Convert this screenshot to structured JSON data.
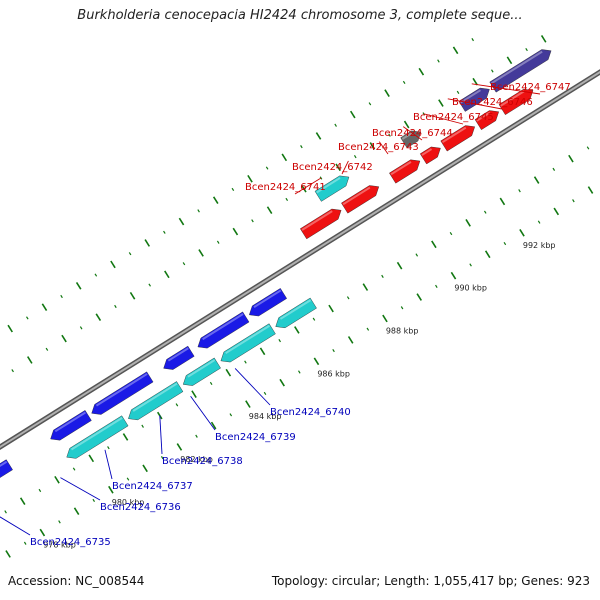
{
  "title": "Burkholderia cenocepacia HI2424 chromosome 3, complete seque...",
  "footer": {
    "accession": "Accession: NC_008544",
    "topology": "Topology: circular; Length: 1,055,417 bp; Genes: 923"
  },
  "colors": {
    "forward_gene": "#ee1111",
    "forward_operon": "#443a9a",
    "forward_other": "#666666",
    "reverse_gene": "#1a1ae6",
    "reverse_gene2": "#22cccc",
    "backbone": "#8a8a8a",
    "ticks": "#117711",
    "label_forward": "#cc0000",
    "label_reverse": "#0000bb"
  },
  "scale": {
    "unit": "kbp",
    "labeled_ticks": [
      {
        "kbp": 978,
        "label": "978 kbp"
      },
      {
        "kbp": 980,
        "label": "980 kbp"
      },
      {
        "kbp": 982,
        "label": "982 kbp"
      },
      {
        "kbp": 984,
        "label": "984 kbp"
      },
      {
        "kbp": 986,
        "label": "986 kbp"
      },
      {
        "kbp": 988,
        "label": "988 kbp"
      },
      {
        "kbp": 990,
        "label": "990 kbp"
      },
      {
        "kbp": 992,
        "label": "992 kbp"
      }
    ]
  },
  "forward_genes": [
    {
      "name": "Bcen2424_6741",
      "track": "cyan",
      "start_kbp": 988.2,
      "end_kbp": 989.1
    },
    {
      "name": "Bcen2424_6742",
      "track": "red_low",
      "start_kbp": 987.4,
      "end_kbp": 988.5
    },
    {
      "name": "",
      "track": "red_low",
      "start_kbp": 988.6,
      "end_kbp": 989.6
    },
    {
      "name": "Bcen2424_6743",
      "track": "red",
      "start_kbp": 990.0,
      "end_kbp": 990.8
    },
    {
      "name": "Bcen2424_6744",
      "track": "gray",
      "start_kbp": 990.7,
      "end_kbp": 991.2
    },
    {
      "name": "",
      "track": "red",
      "start_kbp": 990.9,
      "end_kbp": 991.4
    },
    {
      "name": "Bcen2424_6745",
      "track": "red",
      "start_kbp": 991.5,
      "end_kbp": 992.4
    },
    {
      "name": "Bcen2424_6746",
      "track": "red",
      "start_kbp": 992.5,
      "end_kbp": 993.1
    },
    {
      "name": "Bcen2424_6747",
      "track": "red",
      "start_kbp": 993.2,
      "end_kbp": 994.1
    },
    {
      "name": "",
      "track": "purple",
      "start_kbp": 992.4,
      "end_kbp": 993.2
    },
    {
      "name": "",
      "track": "purple",
      "start_kbp": 993.3,
      "end_kbp": 995.0
    }
  ],
  "reverse_genes": [
    {
      "name": "",
      "track": "blue",
      "start_kbp": 977.6,
      "end_kbp": 978.2
    },
    {
      "name": "Bcen2424_6735",
      "track": "blue",
      "start_kbp": 979.4,
      "end_kbp": 980.5
    },
    {
      "name": "Bcen2424_6736",
      "track": "cyan",
      "start_kbp": 979.5,
      "end_kbp": 981.2
    },
    {
      "name": "Bcen2424_6737",
      "track": "blue",
      "start_kbp": 980.6,
      "end_kbp": 982.3
    },
    {
      "name": "",
      "track": "cyan",
      "start_kbp": 981.3,
      "end_kbp": 982.8
    },
    {
      "name": "Bcen2424_6738",
      "track": "blue",
      "start_kbp": 982.7,
      "end_kbp": 983.5
    },
    {
      "name": "Bcen2424_6739",
      "track": "cyan",
      "start_kbp": 982.9,
      "end_kbp": 983.9
    },
    {
      "name": "",
      "track": "blue",
      "start_kbp": 983.7,
      "end_kbp": 985.1
    },
    {
      "name": "Bcen2424_6740",
      "track": "cyan",
      "start_kbp": 984.0,
      "end_kbp": 985.5
    },
    {
      "name": "",
      "track": "blue",
      "start_kbp": 985.2,
      "end_kbp": 986.2
    },
    {
      "name": "",
      "track": "cyan",
      "start_kbp": 985.6,
      "end_kbp": 986.7
    }
  ],
  "gene_labels_forward": [
    {
      "text": "Bcen2424_6741",
      "anchor_kbp": 988.5
    },
    {
      "text": "Bcen2424_6742",
      "anchor_kbp": 989.3
    },
    {
      "text": "Bcen2424_6743",
      "anchor_kbp": 990.2
    },
    {
      "text": "Bcen2424_6744",
      "anchor_kbp": 990.9
    },
    {
      "text": "Bcen2424_6745",
      "anchor_kbp": 991.5
    },
    {
      "text": "Bcen2424_6746",
      "anchor_kbp": 992.2
    },
    {
      "text": "Bcen2424_6747",
      "anchor_kbp": 992.9
    }
  ],
  "gene_labels_reverse": [
    {
      "text": "Bcen2424_6735",
      "anchor_kbp": 977.3
    },
    {
      "text": "Bcen2424_6736",
      "anchor_kbp": 979.1
    },
    {
      "text": "Bcen2424_6737",
      "anchor_kbp": 980.4
    },
    {
      "text": "Bcen2424_6738",
      "anchor_kbp": 982.0
    },
    {
      "text": "Bcen2424_6739",
      "anchor_kbp": 982.9
    },
    {
      "text": "Bcen2424_6740",
      "anchor_kbp": 984.2
    }
  ]
}
